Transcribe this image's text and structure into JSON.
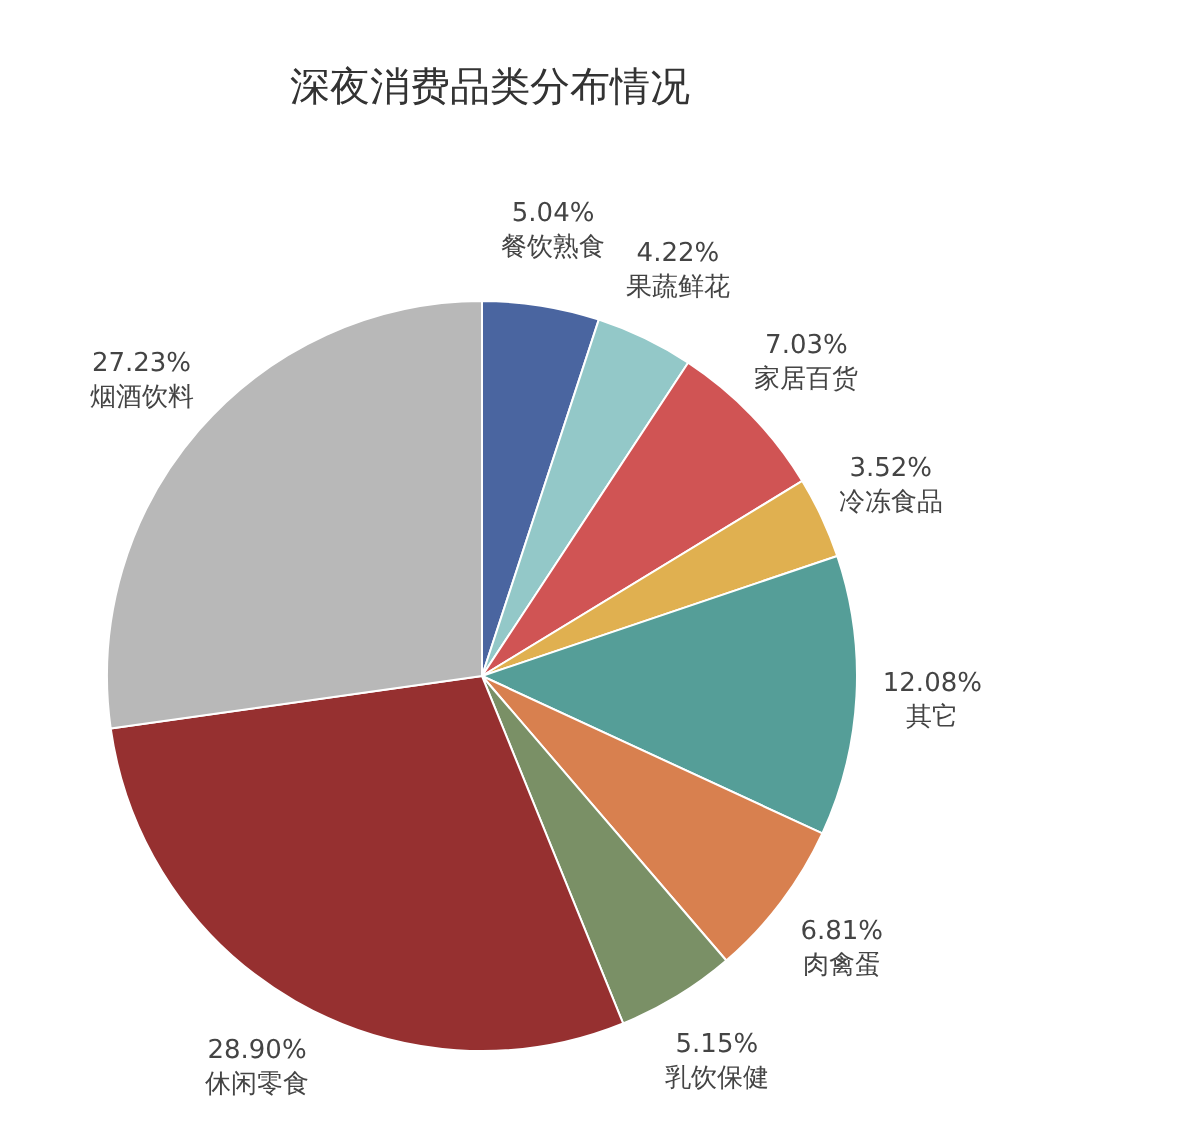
{
  "chart_data": {
    "type": "pie",
    "title": "深夜消费品类分布情况",
    "categories": [
      "餐饮熟食",
      "果蔬鲜花",
      "家居百货",
      "冷冻食品",
      "其它",
      "肉禽蛋",
      "乳饮保健",
      "休闲零食",
      "烟酒饮料"
    ],
    "values": [
      5.04,
      4.22,
      7.03,
      3.52,
      12.08,
      6.81,
      5.15,
      28.9,
      27.23
    ],
    "value_labels": [
      "5.04%",
      "4.22%",
      "7.03%",
      "3.52%",
      "12.08%",
      "6.81%",
      "5.15%",
      "28.90%",
      "27.23%"
    ],
    "colors": [
      "#4a65a0",
      "#93c8c8",
      "#d05454",
      "#e0b050",
      "#559e98",
      "#d8804f",
      "#7a9066",
      "#963030",
      "#b8b8b8"
    ],
    "legend": false
  }
}
